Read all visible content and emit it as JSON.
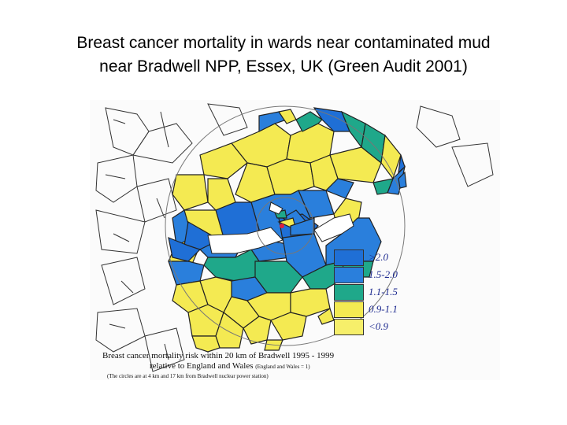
{
  "slide": {
    "title_lines": [
      "Breast cancer mortality in wards near contaminated mud",
      "near Bradwell NPP, Essex, UK (Green Audit 2001)"
    ]
  },
  "map": {
    "colors": {
      "gt_2_0": "#1f6fd6",
      "r_1_5_2_0": "#2a7fdc",
      "r_1_1_1_5": "#1fa88a",
      "r_0_9_1_1": "#f4ea52",
      "lt_0_9": "#f6ef6a",
      "water": "#ffffff",
      "border": "#222222",
      "circle": "#777777"
    },
    "legend": [
      {
        "label": ">2.0",
        "color": "#1f6fd6"
      },
      {
        "label": "1.5-2.0",
        "color": "#2a7fdc"
      },
      {
        "label": "1.1-1.5",
        "color": "#1fa88a"
      },
      {
        "label": "0.9-1.1",
        "color": "#f4ea52"
      },
      {
        "label": "<0.9",
        "color": "#f6ef6a"
      }
    ],
    "caption": {
      "line1": "Breast cancer mortality risk within 20 km of Bradwell 1995 - 1999",
      "line2": "relative to England and Wales",
      "line2_note": "(England and Wales = 1)",
      "line3": "(The circles are at 4 km and 17 km from Bradwell nuclear power station)"
    }
  }
}
